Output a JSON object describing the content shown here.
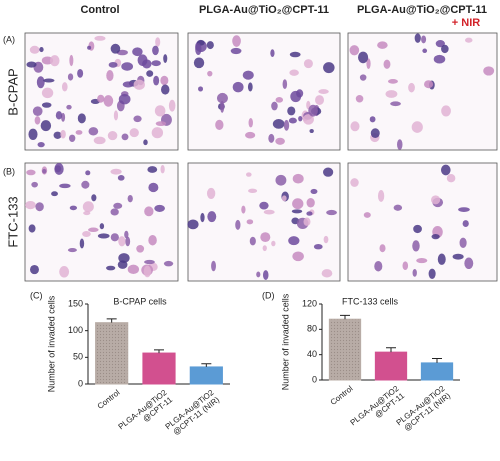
{
  "figure": {
    "columns": [
      "Control",
      "PLGA-Au@TiO₂@CPT-11",
      "PLGA-Au@TiO₂@CPT-11"
    ],
    "nir": "+ NIR",
    "panels": [
      "(A)",
      "(B)"
    ],
    "rows": [
      "B-CPAP",
      "FTC-133"
    ]
  },
  "chart_data": [
    {
      "type": "bar",
      "panel": "(C)",
      "title": "B-CPAP cells",
      "y_label": "Number of invaded cells",
      "categories": [
        "Control",
        "PLGA-Au@TiO2\n@CPT-11",
        "PLGA-Au@TiO2\n@CPT-11 (NIR)"
      ],
      "values": [
        115,
        58,
        32
      ],
      "errors": [
        7,
        6,
        6
      ],
      "colors": [
        "#b8aca6",
        "#d2508f",
        "#5b9bd5"
      ],
      "ylim": [
        0,
        150
      ],
      "yticks": [
        0,
        50,
        100,
        150
      ]
    },
    {
      "type": "bar",
      "panel": "(D)",
      "title": "FTC-133 cells",
      "y_label": "Number of invaded cells",
      "categories": [
        "Control",
        "PLGA-Au@TiO2\n@CPT-11",
        "PLGA-Au@TiO2\n@CPT-11 (NIR)"
      ],
      "values": [
        96,
        44,
        27
      ],
      "errors": [
        6,
        7,
        7
      ],
      "colors": [
        "#b8aca6",
        "#d2508f",
        "#5b9bd5"
      ],
      "ylim": [
        0,
        120
      ],
      "yticks": [
        0,
        40,
        80,
        120
      ]
    }
  ]
}
